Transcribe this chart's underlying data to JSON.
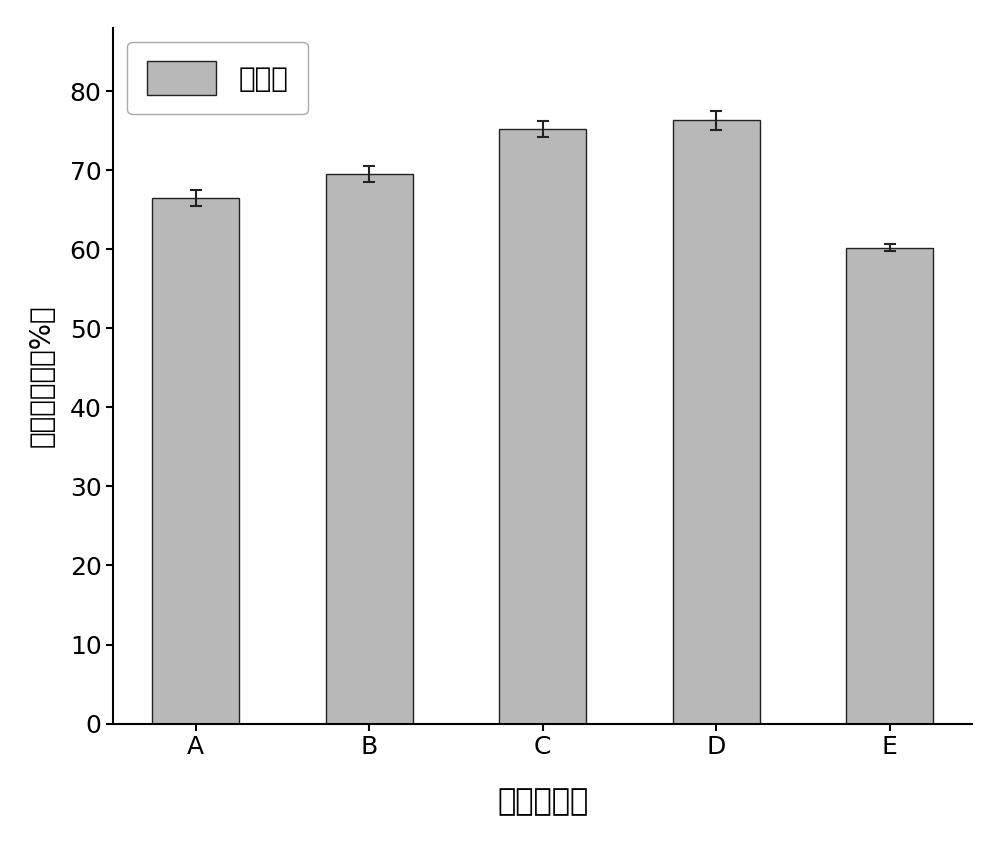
{
  "categories": [
    "A",
    "B",
    "C",
    "D",
    "E"
  ],
  "values": [
    66.5,
    69.5,
    75.2,
    76.3,
    60.2
  ],
  "errors": [
    1.0,
    1.0,
    1.0,
    1.2,
    0.4
  ],
  "bar_color": "#b8b8b8",
  "bar_edgecolor": "#222222",
  "xlabel": "预处理条件",
  "ylabel": "含量百分比（%）",
  "ylim": [
    0,
    88
  ],
  "yticks": [
    0,
    10,
    20,
    30,
    40,
    50,
    60,
    70,
    80
  ],
  "legend_label": "纤维素",
  "xlabel_fontsize": 22,
  "ylabel_fontsize": 20,
  "tick_fontsize": 18,
  "legend_fontsize": 20,
  "bar_width": 0.5,
  "background_color": "#ffffff",
  "capsize": 4
}
